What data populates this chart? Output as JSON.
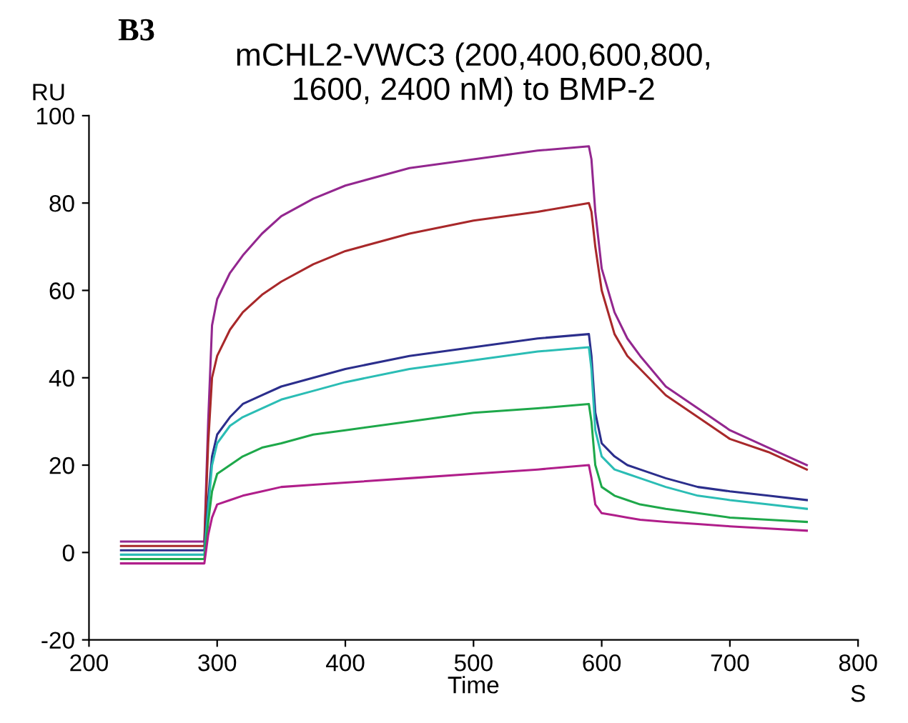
{
  "chart_data": {
    "type": "line",
    "title": "mCHL2-VWC3 (200,400,600,800,\n1600, 2400 nM) to BMP-2",
    "xlabel": "Time",
    "ylabel": "RU",
    "annotations": [
      "B3",
      "S"
    ],
    "x": [
      225,
      250,
      270,
      290,
      293,
      296,
      300,
      310,
      320,
      335,
      350,
      375,
      400,
      450,
      500,
      550,
      590,
      592,
      595,
      600,
      610,
      620,
      630,
      650,
      675,
      700,
      730,
      760
    ],
    "xlim": [
      200,
      800
    ],
    "xticks": [
      200,
      300,
      400,
      500,
      600,
      700,
      800
    ],
    "ylim": [
      -20,
      100
    ],
    "yticks": [
      -20,
      0,
      20,
      40,
      60,
      80,
      100
    ],
    "grid": false,
    "legend": false,
    "marker": "none",
    "line_style": "solid",
    "series": [
      {
        "color": "#93278f",
        "values": [
          2.5,
          2.5,
          2.5,
          2.5,
          30,
          52,
          58,
          64,
          68,
          73,
          77,
          81,
          84,
          88,
          90,
          92,
          93,
          90,
          78,
          65,
          55,
          49,
          45,
          38,
          33,
          28,
          24,
          20
        ]
      },
      {
        "color": "#a8282a",
        "values": [
          1.5,
          1.5,
          1.5,
          1.5,
          25,
          40,
          45,
          51,
          55,
          59,
          62,
          66,
          69,
          73,
          76,
          78,
          80,
          78,
          70,
          60,
          50,
          45,
          42,
          36,
          31,
          26,
          23,
          19
        ]
      },
      {
        "color": "#2b2e8c",
        "values": [
          0.5,
          0.5,
          0.5,
          0.5,
          12,
          22,
          27,
          31,
          34,
          36,
          38,
          40,
          42,
          45,
          47,
          49,
          50,
          45,
          32,
          25,
          22,
          20,
          19,
          17,
          15,
          14,
          13,
          12
        ]
      },
      {
        "color": "#2bbdb5",
        "values": [
          -0.5,
          -0.5,
          -0.5,
          -0.5,
          10,
          20,
          25,
          29,
          31,
          33,
          35,
          37,
          39,
          42,
          44,
          46,
          47,
          42,
          28,
          22,
          19,
          18,
          17,
          15,
          13,
          12,
          11,
          10
        ]
      },
      {
        "color": "#1ea84a",
        "values": [
          -1.5,
          -1.5,
          -1.5,
          -1.5,
          7,
          14,
          18,
          20,
          22,
          24,
          25,
          27,
          28,
          30,
          32,
          33,
          34,
          30,
          20,
          15,
          13,
          12,
          11,
          10,
          9,
          8,
          7.5,
          7
        ]
      },
      {
        "color": "#b01e8a",
        "values": [
          -2.5,
          -2.5,
          -2.5,
          -2.5,
          4,
          8,
          11,
          12,
          13,
          14,
          15,
          15.5,
          16,
          17,
          18,
          19,
          20,
          17,
          11,
          9,
          8.5,
          8,
          7.5,
          7,
          6.5,
          6,
          5.5,
          5
        ]
      }
    ]
  }
}
